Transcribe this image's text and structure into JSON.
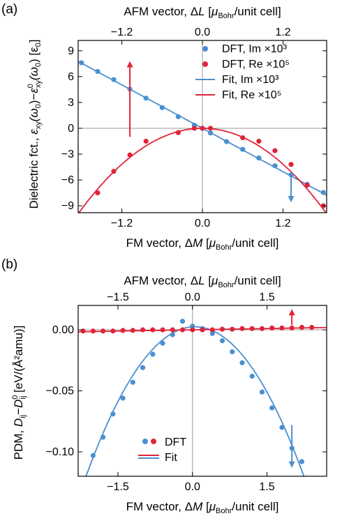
{
  "colors": {
    "blue": "#4a8fd0",
    "red": "#e0243a",
    "axis": "#000000",
    "zero": "#999999"
  },
  "chart_data": [
    {
      "type": "scatter",
      "panel_label": "(a)",
      "xlabel_bottom": {
        "pre": "FM vector, Δ",
        "var": "M",
        "mid": " [",
        "mu": "μ",
        "sub": "Bohr",
        "post": "/unit cell]"
      },
      "xlabel_top": {
        "pre": "AFM vector, Δ",
        "var": "L",
        "mid": " [",
        "mu": "μ",
        "sub": "Bohr",
        "post": "/unit cell]"
      },
      "ylabel": {
        "pre": "Dielectric fct., ",
        "eps": "ε",
        "sub": "xy",
        "arg1": "(ω",
        "arg1sub": "0",
        "arg1end": ")",
        "minus": "−",
        "eps2": "ε",
        "sup2": "0",
        "sub2": "xy",
        "arg2": "(ω",
        "arg2sub": "0",
        "arg2end": ")",
        "unit": " [ε",
        "unitsub": "0",
        "unitend": "]"
      },
      "xlim": [
        -1.85,
        1.85
      ],
      "ylim": [
        -9.8,
        10.2
      ],
      "x_ticks": [
        -1.2,
        0.0,
        1.2
      ],
      "x_tick_labels": [
        "−1.2",
        "0.0",
        "1.2"
      ],
      "top_ticks": [
        -1.2,
        0.0,
        1.2
      ],
      "top_tick_labels": [
        "−1.2",
        "0.0",
        "1.2"
      ],
      "y_ticks": [
        -9,
        -6,
        -3,
        0,
        3,
        6,
        9
      ],
      "y_tick_labels": [
        "−9",
        "−6",
        "−3",
        "0",
        "3",
        "6",
        "9"
      ],
      "series": [
        {
          "name": "DFT, Im ×10³",
          "kind": "points",
          "color": "blue",
          "x": [
            -1.8,
            -1.56,
            -1.32,
            -1.08,
            -0.84,
            -0.6,
            -0.36,
            -0.12,
            0.0,
            0.12,
            0.36,
            0.6,
            0.84,
            1.08,
            1.32,
            1.56,
            1.8
          ],
          "y": [
            7.6,
            6.6,
            5.65,
            4.55,
            3.5,
            2.4,
            1.35,
            0.35,
            0.0,
            -0.55,
            -1.55,
            -2.45,
            -3.45,
            -4.35,
            -5.4,
            -6.5,
            -7.45
          ]
        },
        {
          "name": "DFT, Re ×10⁵",
          "kind": "points",
          "color": "red",
          "x": [
            -1.56,
            -1.32,
            -1.08,
            -0.84,
            -0.36,
            -0.12,
            0.0,
            0.12,
            0.6,
            0.84,
            1.08,
            1.32,
            1.56,
            1.8
          ],
          "y": [
            -7.5,
            -5.0,
            -3.1,
            -1.5,
            -0.5,
            0.0,
            0.0,
            0.0,
            -1.1,
            -1.5,
            -2.6,
            -4.2,
            -6.6,
            -9.0
          ]
        },
        {
          "name": "Fit, Im ×10³",
          "kind": "line",
          "color": "blue",
          "slope": -4.2,
          "intercept": 0.0
        },
        {
          "name": "Fit, Re ×10⁵",
          "kind": "line",
          "color": "red",
          "quad": -2.9
        }
      ],
      "legend_position": "top-right",
      "annotations": [
        {
          "kind": "arrow",
          "color": "red",
          "x": -1.08,
          "y_from": -1.0,
          "y_to": 7.8
        },
        {
          "kind": "arrow",
          "color": "blue",
          "x": 1.32,
          "y_from": -5.6,
          "y_to": -8.6
        }
      ]
    },
    {
      "type": "scatter",
      "panel_label": "(b)",
      "xlabel_bottom": {
        "pre": "FM vector, Δ",
        "var": "M",
        "mid": " [",
        "mu": "μ",
        "sub": "Bohr",
        "post": "/unit cell]"
      },
      "xlabel_top": {
        "pre": "AFM vector, Δ",
        "var": "L",
        "mid": " [",
        "mu": "μ",
        "sub": "Bohr",
        "post": "/unit cell]"
      },
      "ylabel": {
        "pre": "PDM, ",
        "D": "D",
        "sub1": "ij",
        "minus": "−",
        "D2": "D",
        "sup2": "0",
        "sub2": "ij",
        "unit": " [eV/(Å²amu)]"
      },
      "xlim": [
        -2.3,
        2.7
      ],
      "ylim": [
        -0.12,
        0.02
      ],
      "x_ticks": [
        -1.5,
        0.0,
        1.5
      ],
      "x_tick_labels": [
        "−1.5",
        "0.0",
        "1.5"
      ],
      "top_ticks": [
        -1.5,
        0.0,
        1.5
      ],
      "top_tick_labels": [
        "−1.5",
        "0.0",
        "1.5"
      ],
      "y_ticks": [
        0.0,
        -0.05,
        -0.1
      ],
      "y_tick_labels": [
        "0.00",
        "−0.05",
        "−0.10"
      ],
      "series": [
        {
          "name": "DFT",
          "kind": "points",
          "color": "blue",
          "x": [
            -2.0,
            -1.8,
            -1.6,
            -1.4,
            -1.2,
            -1.0,
            -0.8,
            -0.6,
            -0.4,
            -0.2,
            0.0,
            0.2,
            0.4,
            0.6,
            0.8,
            1.0,
            1.2,
            1.4,
            1.6,
            1.8,
            2.0,
            2.2
          ],
          "y": [
            -0.103,
            -0.088,
            -0.069,
            -0.056,
            -0.043,
            -0.031,
            -0.02,
            -0.011,
            -0.004,
            0.007,
            0.003,
            0.001,
            -0.003,
            -0.009,
            -0.018,
            -0.027,
            -0.038,
            -0.051,
            -0.064,
            -0.08,
            -0.097,
            -0.108
          ]
        },
        {
          "name": "DFT",
          "kind": "points",
          "color": "red",
          "x": [
            -2.2,
            -2.0,
            -1.8,
            -1.6,
            -1.4,
            -1.2,
            -1.0,
            -0.8,
            -0.6,
            -0.4,
            -0.2,
            0.0,
            0.2,
            0.4,
            0.6,
            0.8,
            1.0,
            1.2,
            1.4,
            1.6,
            1.8,
            2.0,
            2.2,
            2.4
          ],
          "y": [
            -0.001,
            -0.001,
            -0.001,
            -0.001,
            -0.0005,
            -0.0005,
            0.0,
            0.0,
            0.0,
            0.0,
            0.0,
            0.0,
            0.0,
            0.0,
            0.0005,
            0.0005,
            0.001,
            0.001,
            0.001,
            0.0015,
            0.0015,
            0.0015,
            0.002,
            0.002
          ]
        },
        {
          "name": "Fit",
          "kind": "line",
          "color": "blue",
          "quad": -0.0255,
          "center": 0.05,
          "peak": 0.0025
        },
        {
          "name": "Fit",
          "kind": "line",
          "color": "red",
          "slope": 0.0007,
          "intercept": 0.0
        }
      ],
      "legend_position": "bottom-left",
      "annotations": [
        {
          "kind": "arrow",
          "color": "red",
          "x": 2.0,
          "y_from": 0.004,
          "y_to": 0.017
        },
        {
          "kind": "arrow",
          "color": "blue",
          "x": 2.0,
          "y_from": -0.078,
          "y_to": -0.113
        }
      ]
    }
  ]
}
